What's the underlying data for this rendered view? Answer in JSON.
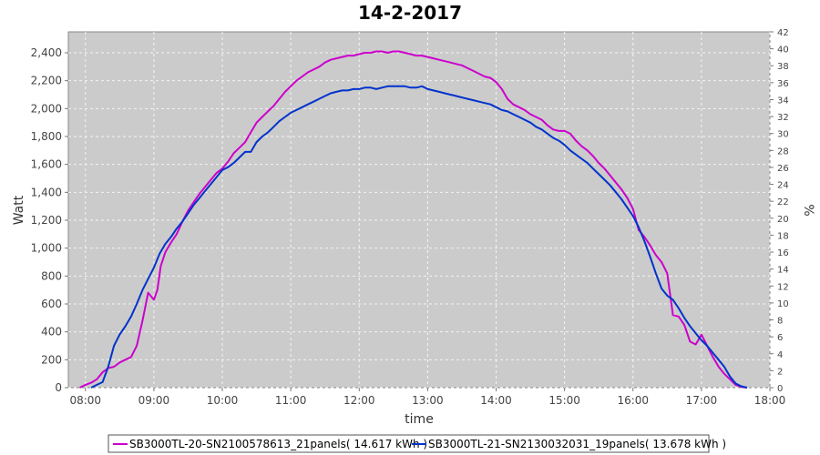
{
  "chart_data": {
    "type": "line",
    "title": "14-2-2017",
    "xlabel": "time",
    "ylabel": "Watt",
    "y2label": "%",
    "xlim": [
      "07:45",
      "18:00"
    ],
    "x_ticks": [
      "08:00",
      "09:00",
      "10:00",
      "11:00",
      "12:00",
      "13:00",
      "14:00",
      "15:00",
      "16:00",
      "17:00",
      "18:00"
    ],
    "ylim": [
      0,
      2550
    ],
    "y_ticks": [
      "0",
      "200",
      "400",
      "600",
      "800",
      "1,000",
      "1,200",
      "1,400",
      "1,600",
      "1,800",
      "2,000",
      "2,200",
      "2,400"
    ],
    "y2lim": [
      0,
      42
    ],
    "y2_ticks": [
      "0",
      "2",
      "4",
      "6",
      "8",
      "10",
      "12",
      "14",
      "16",
      "18",
      "20",
      "22",
      "24",
      "26",
      "28",
      "30",
      "32",
      "34",
      "36",
      "38",
      "40",
      "42"
    ],
    "grid": true,
    "legend_position": "bottom",
    "series": [
      {
        "name": "SB3000TL-20-SN2100578613_21panels( 14.617 kWh )",
        "color": "#cc00cc",
        "points": [
          [
            "07:55",
            0
          ],
          [
            "08:00",
            20
          ],
          [
            "08:05",
            35
          ],
          [
            "08:10",
            60
          ],
          [
            "08:15",
            110
          ],
          [
            "08:20",
            140
          ],
          [
            "08:25",
            150
          ],
          [
            "08:30",
            180
          ],
          [
            "08:35",
            200
          ],
          [
            "08:40",
            220
          ],
          [
            "08:45",
            300
          ],
          [
            "08:50",
            480
          ],
          [
            "08:55",
            680
          ],
          [
            "09:00",
            630
          ],
          [
            "09:03",
            700
          ],
          [
            "09:06",
            870
          ],
          [
            "09:10",
            970
          ],
          [
            "09:15",
            1040
          ],
          [
            "09:20",
            1100
          ],
          [
            "09:25",
            1190
          ],
          [
            "09:30",
            1270
          ],
          [
            "09:35",
            1330
          ],
          [
            "09:40",
            1390
          ],
          [
            "09:45",
            1440
          ],
          [
            "09:50",
            1490
          ],
          [
            "09:55",
            1540
          ],
          [
            "10:00",
            1570
          ],
          [
            "10:05",
            1620
          ],
          [
            "10:10",
            1680
          ],
          [
            "10:15",
            1720
          ],
          [
            "10:20",
            1760
          ],
          [
            "10:25",
            1830
          ],
          [
            "10:30",
            1900
          ],
          [
            "10:35",
            1940
          ],
          [
            "10:40",
            1980
          ],
          [
            "10:45",
            2020
          ],
          [
            "10:50",
            2070
          ],
          [
            "10:55",
            2120
          ],
          [
            "11:00",
            2160
          ],
          [
            "11:05",
            2200
          ],
          [
            "11:10",
            2230
          ],
          [
            "11:15",
            2260
          ],
          [
            "11:20",
            2280
          ],
          [
            "11:25",
            2300
          ],
          [
            "11:30",
            2330
          ],
          [
            "11:35",
            2350
          ],
          [
            "11:40",
            2360
          ],
          [
            "11:45",
            2370
          ],
          [
            "11:50",
            2380
          ],
          [
            "11:55",
            2380
          ],
          [
            "12:00",
            2390
          ],
          [
            "12:05",
            2400
          ],
          [
            "12:10",
            2400
          ],
          [
            "12:15",
            2410
          ],
          [
            "12:20",
            2410
          ],
          [
            "12:25",
            2400
          ],
          [
            "12:30",
            2410
          ],
          [
            "12:35",
            2410
          ],
          [
            "12:40",
            2400
          ],
          [
            "12:45",
            2390
          ],
          [
            "12:50",
            2380
          ],
          [
            "12:55",
            2380
          ],
          [
            "13:00",
            2370
          ],
          [
            "13:05",
            2360
          ],
          [
            "13:10",
            2350
          ],
          [
            "13:15",
            2340
          ],
          [
            "13:20",
            2330
          ],
          [
            "13:25",
            2320
          ],
          [
            "13:30",
            2310
          ],
          [
            "13:35",
            2290
          ],
          [
            "13:40",
            2270
          ],
          [
            "13:45",
            2250
          ],
          [
            "13:50",
            2230
          ],
          [
            "13:55",
            2220
          ],
          [
            "14:00",
            2190
          ],
          [
            "14:05",
            2140
          ],
          [
            "14:10",
            2070
          ],
          [
            "14:15",
            2030
          ],
          [
            "14:20",
            2010
          ],
          [
            "14:25",
            1990
          ],
          [
            "14:30",
            1960
          ],
          [
            "14:35",
            1940
          ],
          [
            "14:40",
            1920
          ],
          [
            "14:45",
            1880
          ],
          [
            "14:50",
            1850
          ],
          [
            "14:55",
            1840
          ],
          [
            "15:00",
            1840
          ],
          [
            "15:05",
            1820
          ],
          [
            "15:10",
            1770
          ],
          [
            "15:15",
            1730
          ],
          [
            "15:20",
            1700
          ],
          [
            "15:25",
            1660
          ],
          [
            "15:30",
            1610
          ],
          [
            "15:35",
            1570
          ],
          [
            "15:40",
            1520
          ],
          [
            "15:45",
            1470
          ],
          [
            "15:50",
            1420
          ],
          [
            "15:55",
            1360
          ],
          [
            "16:00",
            1280
          ],
          [
            "16:05",
            1130
          ],
          [
            "16:10",
            1080
          ],
          [
            "16:15",
            1020
          ],
          [
            "16:20",
            950
          ],
          [
            "16:25",
            900
          ],
          [
            "16:30",
            820
          ],
          [
            "16:35",
            520
          ],
          [
            "16:40",
            510
          ],
          [
            "16:45",
            450
          ],
          [
            "16:50",
            330
          ],
          [
            "16:55",
            310
          ],
          [
            "17:00",
            380
          ],
          [
            "17:05",
            300
          ],
          [
            "17:10",
            220
          ],
          [
            "17:15",
            150
          ],
          [
            "17:20",
            100
          ],
          [
            "17:25",
            60
          ],
          [
            "17:30",
            20
          ],
          [
            "17:35",
            5
          ],
          [
            "17:40",
            0
          ]
        ]
      },
      {
        "name": "SB3000TL-21-SN2130032031_19panels( 13.678 kWh )",
        "color": "#0033cc",
        "points": [
          [
            "08:05",
            0
          ],
          [
            "08:10",
            20
          ],
          [
            "08:15",
            40
          ],
          [
            "08:20",
            150
          ],
          [
            "08:25",
            300
          ],
          [
            "08:30",
            380
          ],
          [
            "08:35",
            440
          ],
          [
            "08:40",
            510
          ],
          [
            "08:45",
            600
          ],
          [
            "08:50",
            700
          ],
          [
            "08:55",
            780
          ],
          [
            "09:00",
            860
          ],
          [
            "09:05",
            960
          ],
          [
            "09:10",
            1030
          ],
          [
            "09:15",
            1080
          ],
          [
            "09:20",
            1140
          ],
          [
            "09:25",
            1190
          ],
          [
            "09:30",
            1250
          ],
          [
            "09:35",
            1310
          ],
          [
            "09:40",
            1360
          ],
          [
            "09:45",
            1410
          ],
          [
            "09:50",
            1460
          ],
          [
            "09:55",
            1510
          ],
          [
            "10:00",
            1560
          ],
          [
            "10:05",
            1580
          ],
          [
            "10:10",
            1610
          ],
          [
            "10:15",
            1650
          ],
          [
            "10:20",
            1690
          ],
          [
            "10:25",
            1690
          ],
          [
            "10:30",
            1760
          ],
          [
            "10:35",
            1800
          ],
          [
            "10:40",
            1830
          ],
          [
            "10:45",
            1870
          ],
          [
            "10:50",
            1910
          ],
          [
            "10:55",
            1940
          ],
          [
            "11:00",
            1970
          ],
          [
            "11:05",
            1990
          ],
          [
            "11:10",
            2010
          ],
          [
            "11:15",
            2030
          ],
          [
            "11:20",
            2050
          ],
          [
            "11:25",
            2070
          ],
          [
            "11:30",
            2090
          ],
          [
            "11:35",
            2110
          ],
          [
            "11:40",
            2120
          ],
          [
            "11:45",
            2130
          ],
          [
            "11:50",
            2130
          ],
          [
            "11:55",
            2140
          ],
          [
            "12:00",
            2140
          ],
          [
            "12:05",
            2150
          ],
          [
            "12:10",
            2150
          ],
          [
            "12:15",
            2140
          ],
          [
            "12:20",
            2150
          ],
          [
            "12:25",
            2160
          ],
          [
            "12:30",
            2160
          ],
          [
            "12:35",
            2160
          ],
          [
            "12:40",
            2160
          ],
          [
            "12:45",
            2150
          ],
          [
            "12:50",
            2150
          ],
          [
            "12:55",
            2160
          ],
          [
            "13:00",
            2140
          ],
          [
            "13:05",
            2130
          ],
          [
            "13:10",
            2120
          ],
          [
            "13:15",
            2110
          ],
          [
            "13:20",
            2100
          ],
          [
            "13:25",
            2090
          ],
          [
            "13:30",
            2080
          ],
          [
            "13:35",
            2070
          ],
          [
            "13:40",
            2060
          ],
          [
            "13:45",
            2050
          ],
          [
            "13:50",
            2040
          ],
          [
            "13:55",
            2030
          ],
          [
            "14:00",
            2010
          ],
          [
            "14:05",
            1990
          ],
          [
            "14:10",
            1980
          ],
          [
            "14:15",
            1960
          ],
          [
            "14:20",
            1940
          ],
          [
            "14:25",
            1920
          ],
          [
            "14:30",
            1900
          ],
          [
            "14:35",
            1870
          ],
          [
            "14:40",
            1850
          ],
          [
            "14:45",
            1820
          ],
          [
            "14:50",
            1790
          ],
          [
            "14:55",
            1770
          ],
          [
            "15:00",
            1740
          ],
          [
            "15:05",
            1700
          ],
          [
            "15:10",
            1670
          ],
          [
            "15:15",
            1640
          ],
          [
            "15:20",
            1610
          ],
          [
            "15:25",
            1570
          ],
          [
            "15:30",
            1530
          ],
          [
            "15:35",
            1490
          ],
          [
            "15:40",
            1450
          ],
          [
            "15:45",
            1400
          ],
          [
            "15:50",
            1350
          ],
          [
            "15:55",
            1290
          ],
          [
            "16:00",
            1230
          ],
          [
            "16:05",
            1150
          ],
          [
            "16:10",
            1050
          ],
          [
            "16:15",
            940
          ],
          [
            "16:20",
            820
          ],
          [
            "16:25",
            710
          ],
          [
            "16:30",
            660
          ],
          [
            "16:35",
            630
          ],
          [
            "16:40",
            570
          ],
          [
            "16:45",
            500
          ],
          [
            "16:50",
            440
          ],
          [
            "16:55",
            390
          ],
          [
            "17:00",
            340
          ],
          [
            "17:05",
            300
          ],
          [
            "17:10",
            250
          ],
          [
            "17:15",
            200
          ],
          [
            "17:20",
            150
          ],
          [
            "17:25",
            80
          ],
          [
            "17:30",
            30
          ],
          [
            "17:35",
            10
          ],
          [
            "17:40",
            0
          ]
        ]
      }
    ]
  }
}
